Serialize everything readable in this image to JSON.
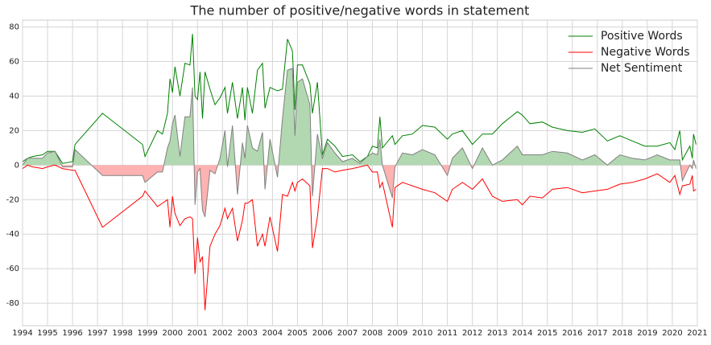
{
  "chart_data": {
    "type": "line",
    "title": "The number of positive/negative words in statement",
    "x": [
      1994.0,
      1994.2,
      1994.4,
      1994.8,
      1995.0,
      1995.3,
      1995.6,
      1996.0,
      1996.1,
      1997.2,
      1998.8,
      1998.9,
      1999.4,
      1999.6,
      1999.8,
      1999.9,
      2000.0,
      2000.1,
      2000.3,
      2000.5,
      2000.7,
      2000.8,
      2000.9,
      2001.0,
      2001.1,
      2001.2,
      2001.3,
      2001.5,
      2001.7,
      2001.9,
      2002.1,
      2002.2,
      2002.4,
      2002.6,
      2002.8,
      2002.9,
      2003.0,
      2003.2,
      2003.4,
      2003.6,
      2003.7,
      2003.9,
      2004.2,
      2004.4,
      2004.6,
      2004.8,
      2004.9,
      2005.0,
      2005.2,
      2005.5,
      2005.6,
      2005.8,
      2006.0,
      2006.2,
      2006.5,
      2006.8,
      2007.2,
      2007.5,
      2007.8,
      2008.0,
      2008.2,
      2008.3,
      2008.4,
      2008.8,
      2008.9,
      2009.2,
      2009.6,
      2010.0,
      2010.5,
      2011.0,
      2011.2,
      2011.6,
      2012.0,
      2012.4,
      2012.8,
      2013.2,
      2013.8,
      2014.0,
      2014.3,
      2014.8,
      2015.2,
      2015.8,
      2016.4,
      2016.9,
      2017.4,
      2017.9,
      2018.4,
      2018.9,
      2019.4,
      2019.9,
      2020.1,
      2020.3,
      2020.4,
      2020.7,
      2020.8,
      2020.85,
      2020.95
    ],
    "series": [
      {
        "name": "Positive Words",
        "color": "#008000",
        "values": [
          2,
          4,
          5,
          6,
          8,
          8,
          1,
          2,
          12,
          30,
          12,
          5,
          20,
          18,
          30,
          50,
          42,
          57,
          40,
          59,
          58,
          76,
          40,
          38,
          54,
          27,
          54,
          44,
          35,
          39,
          45,
          30,
          48,
          27,
          45,
          26,
          45,
          30,
          55,
          59,
          33,
          45,
          43,
          44,
          73,
          66,
          32,
          58,
          58,
          47,
          30,
          48,
          6,
          15,
          11,
          5,
          6,
          2,
          5,
          11,
          10,
          28,
          10,
          17,
          12,
          17,
          18,
          23,
          22,
          15,
          18,
          20,
          12,
          18,
          18,
          24,
          31,
          29,
          24,
          25,
          22,
          20,
          19,
          21,
          14,
          17,
          14,
          11,
          11,
          13,
          9,
          20,
          3,
          11,
          4,
          18,
          12
        ]
      },
      {
        "name": "Negative Words",
        "color": "#ff0000",
        "values": [
          -2,
          0,
          -1,
          -2,
          -1,
          0,
          -2,
          -3,
          -3,
          -36,
          -18,
          -15,
          -24,
          -22,
          -20,
          -36,
          -18,
          -28,
          -35,
          -31,
          -30,
          -31,
          -63,
          -42,
          -56,
          -53,
          -84,
          -47,
          -40,
          -35,
          -25,
          -31,
          -25,
          -44,
          -32,
          -22,
          -22,
          -20,
          -47,
          -40,
          -47,
          -30,
          -50,
          -17,
          -18,
          -10,
          -15,
          -10,
          -8,
          -12,
          -48,
          -30,
          -2,
          -2,
          -4,
          -3,
          -2,
          -1,
          0,
          -4,
          -4,
          -13,
          -10,
          -36,
          -13,
          -10,
          -12,
          -14,
          -16,
          -21,
          -14,
          -10,
          -14,
          -8,
          -18,
          -21,
          -20,
          -23,
          -18,
          -19,
          -14,
          -13,
          -16,
          -15,
          -14,
          -11,
          -10,
          -8,
          -5,
          -10,
          -6,
          -17,
          -12,
          -11,
          -6,
          -15,
          -14
        ]
      },
      {
        "name": "Net Sentiment",
        "color": "#808080",
        "values": [
          0,
          4,
          4,
          4,
          7,
          8,
          -1,
          -1,
          9,
          -6,
          -6,
          -10,
          -4,
          -4,
          10,
          14,
          24,
          29,
          5,
          28,
          28,
          45,
          -23,
          -4,
          -2,
          -26,
          -30,
          -3,
          -5,
          4,
          20,
          -1,
          23,
          -17,
          13,
          4,
          23,
          10,
          8,
          19,
          -14,
          15,
          -7,
          27,
          55,
          56,
          17,
          48,
          50,
          35,
          -18,
          18,
          4,
          13,
          7,
          2,
          4,
          1,
          5,
          7,
          6,
          15,
          0,
          -19,
          -1,
          7,
          6,
          9,
          6,
          -6,
          4,
          10,
          -2,
          10,
          0,
          3,
          11,
          6,
          6,
          6,
          8,
          7,
          3,
          6,
          0,
          6,
          4,
          3,
          6,
          3,
          3,
          3,
          -9,
          0,
          -2,
          3,
          -2
        ],
        "fill_positive": "#b2d8b2",
        "fill_negative": "#ffb2b2"
      }
    ],
    "xlim": [
      1994,
      2021
    ],
    "xticks": [
      1994,
      1995,
      1996,
      1997,
      1998,
      1999,
      2000,
      2001,
      2002,
      2003,
      2004,
      2005,
      2006,
      2007,
      2008,
      2009,
      2010,
      2011,
      2012,
      2013,
      2014,
      2015,
      2016,
      2017,
      2018,
      2019,
      2020,
      2021
    ],
    "ylim": [
      -93,
      84
    ],
    "yticks": [
      -80,
      -60,
      -40,
      -20,
      0,
      20,
      40,
      60,
      80
    ],
    "grid": true,
    "legend": "upper right"
  }
}
